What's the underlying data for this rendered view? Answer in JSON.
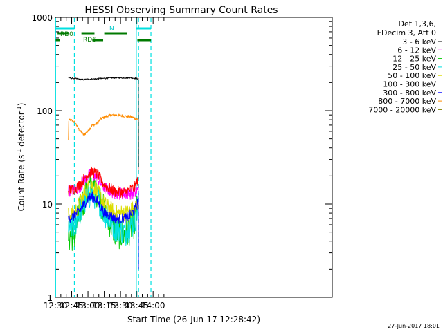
{
  "chart_data": {
    "type": "line",
    "title": "HESSI Observing Summary Count Rates",
    "xlabel": "Start Time (26-Jun-17 12:28:42)",
    "ylabel": "Count Rate (s⁻¹ detector⁻¹)",
    "ylabel_base": "Count Rate (s",
    "ylabel_mid": " detector",
    "ylabel_end": ")",
    "ylabel_sup": "-1",
    "yscale": "log",
    "xlim": [
      750,
      1005
    ],
    "ylim": [
      1,
      1000
    ],
    "x_ticks": [
      {
        "value": 750,
        "label": "12:30"
      },
      {
        "value": 765,
        "label": "12:45"
      },
      {
        "value": 780,
        "label": "13:00"
      },
      {
        "value": 795,
        "label": "13:15"
      },
      {
        "value": 810,
        "label": "13:30"
      },
      {
        "value": 825,
        "label": "13:45"
      },
      {
        "value": 840,
        "label": "14:00"
      }
    ],
    "x_minor_step": 5,
    "y_ticks": [
      {
        "value": 1,
        "label": "1"
      },
      {
        "value": 10,
        "label": "10"
      },
      {
        "value": 100,
        "label": "100"
      },
      {
        "value": 1000,
        "label": "1000"
      }
    ],
    "legend_title": [
      "Det 1,3,6,",
      "FDecim 3, Att 0"
    ],
    "series": [
      {
        "name": "3 - 6 keV",
        "color": "#000000",
        "x": [
          762,
          775,
          790,
          805,
          820,
          826.5
        ],
        "y": [
          225,
          215,
          220,
          225,
          225,
          220
        ]
      },
      {
        "name": "6 - 12 keV",
        "color": "#ff00ff",
        "x": [
          762,
          768,
          774,
          780,
          784,
          788,
          795,
          805,
          815,
          823,
          826,
          826.5
        ],
        "y": [
          14,
          14,
          16,
          20,
          21,
          19,
          15,
          13,
          13,
          13,
          14,
          18
        ]
      },
      {
        "name": "12 - 25 keV",
        "color": "#00c800",
        "x": [
          762,
          768,
          774,
          780,
          784,
          788,
          795,
          805,
          815,
          823,
          826,
          826.5
        ],
        "y": [
          4.5,
          4.7,
          9.5,
          14,
          16,
          14,
          8,
          5,
          4.7,
          6.5,
          9,
          12
        ]
      },
      {
        "name": "25 - 50 keV",
        "color": "#00e0e0",
        "x": [
          762,
          768,
          774,
          780,
          784,
          788,
          795,
          805,
          815,
          823,
          826,
          826.5
        ],
        "y": [
          5.5,
          6,
          9,
          12,
          13,
          12,
          8,
          5.5,
          5,
          6.5,
          9,
          12
        ]
      },
      {
        "name": "50 - 100 keV",
        "color": "#dcdc00",
        "x": [
          762,
          768,
          774,
          780,
          784,
          788,
          795,
          805,
          815,
          823,
          826,
          826.5
        ],
        "y": [
          7.5,
          8,
          11,
          15,
          16,
          14,
          10,
          8,
          8,
          9,
          10,
          12
        ]
      },
      {
        "name": "100 - 300 keV",
        "color": "#ff0000",
        "x": [
          762,
          768,
          774,
          780,
          784,
          788,
          795,
          805,
          815,
          823,
          826,
          826.5
        ],
        "y": [
          14,
          14.5,
          17,
          21,
          22,
          21,
          16,
          13.5,
          13.5,
          15,
          18,
          23
        ]
      },
      {
        "name": "300 - 800 keV",
        "color": "#0000ff",
        "x": [
          762,
          768,
          774,
          780,
          784,
          788,
          795,
          805,
          815,
          823,
          826,
          826.5
        ],
        "y": [
          7,
          7.5,
          9,
          11.5,
          12,
          11,
          8,
          7,
          7,
          8.5,
          10.5,
          13
        ]
      },
      {
        "name": "800 - 7000 keV",
        "color": "#ff8c00",
        "x": [
          762,
          762.3,
          764,
          768,
          772,
          776,
          780,
          784,
          788,
          792,
          798,
          804,
          812,
          820,
          826.5
        ],
        "y": [
          48,
          78,
          80,
          75,
          62,
          55,
          60,
          70,
          72,
          82,
          88,
          90,
          88,
          86,
          80
        ]
      },
      {
        "name": "7000 - 20000 keV",
        "color": "#808000",
        "x": [],
        "y": []
      }
    ],
    "annotations": [
      {
        "text": "RD0",
        "color": "#007a00"
      },
      {
        "text": "RD6",
        "color": "#007a00"
      },
      {
        "text": "N",
        "color": "#00c8c8"
      }
    ],
    "vertical_lines": [
      {
        "x": 750.2,
        "style": "solid",
        "color": "#00e0e0"
      },
      {
        "x": 767.5,
        "style": "dashed",
        "color": "#00e0e0"
      },
      {
        "x": 824.5,
        "style": "solid",
        "color": "#00e0e0"
      },
      {
        "x": 826.6,
        "style": "dashed",
        "color": "#00e0e0"
      },
      {
        "x": 838,
        "style": "dashed",
        "color": "#00e0e0"
      }
    ],
    "flag_bars": [
      {
        "name": "N-flag",
        "color": "#00e0e0",
        "level": 1,
        "segments": [
          [
            750.3,
            767.5
          ],
          [
            824.5,
            838
          ]
        ]
      },
      {
        "name": "RD0-flag",
        "color": "#007a00",
        "level": 2,
        "segments": [
          [
            752,
            762
          ],
          [
            774,
            786
          ],
          [
            795,
            816
          ]
        ]
      },
      {
        "name": "RD6-flag",
        "color": "#007a00",
        "level": 3,
        "segments": [
          [
            750.3,
            754
          ],
          [
            784,
            794
          ],
          [
            825.5,
            838
          ]
        ]
      }
    ]
  },
  "footer": {
    "timestamp": "27-Jun-2017 18:01"
  }
}
